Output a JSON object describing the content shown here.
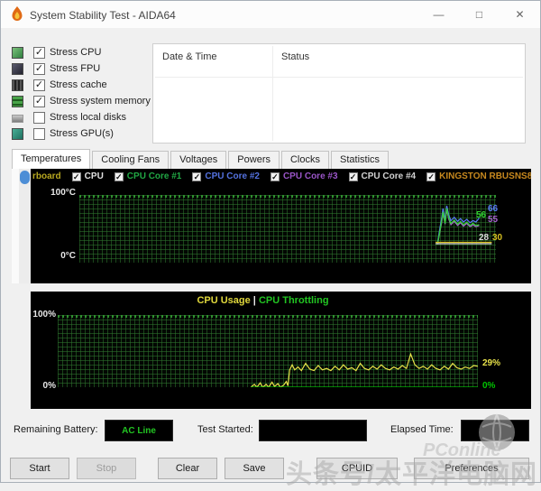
{
  "window": {
    "title": "System Stability Test - AIDA64",
    "controls": {
      "minimize": "—",
      "maximize": "□",
      "close": "✕"
    }
  },
  "stress_options": [
    {
      "label": "Stress CPU",
      "mark": "✓"
    },
    {
      "label": "Stress FPU",
      "mark": "✓"
    },
    {
      "label": "Stress cache",
      "mark": "✓"
    },
    {
      "label": "Stress system memory",
      "mark": "✓"
    },
    {
      "label": "Stress local disks",
      "mark": ""
    },
    {
      "label": "Stress GPU(s)",
      "mark": ""
    }
  ],
  "log_table": {
    "columns": [
      "Date & Time",
      "Status"
    ],
    "rows": []
  },
  "tabs": [
    {
      "label": "Temperatures"
    },
    {
      "label": "Cooling Fans"
    },
    {
      "label": "Voltages"
    },
    {
      "label": "Powers"
    },
    {
      "label": "Clocks"
    },
    {
      "label": "Statistics"
    }
  ],
  "temp_panel": {
    "legend": [
      {
        "label": "rboard",
        "color": "#b8a820",
        "mark": ""
      },
      {
        "label": "CPU",
        "color": "#e2e2e2",
        "mark": "✓"
      },
      {
        "label": "CPU Core #1",
        "color": "#21a844",
        "mark": "✓"
      },
      {
        "label": "CPU Core #2",
        "color": "#5472e0",
        "mark": "✓"
      },
      {
        "label": "CPU Core #3",
        "color": "#9a55c8",
        "mark": "✓"
      },
      {
        "label": "CPU Core #4",
        "color": "#d2d2d2",
        "mark": "✓"
      },
      {
        "label": "KINGSTON RBUSNS8180",
        "color": "#c8891e",
        "mark": "✓"
      }
    ],
    "y_top": "100°C",
    "y_bottom": "0°C",
    "right_values": [
      {
        "text": "56",
        "color": "#2fd32f"
      },
      {
        "text": "66",
        "color": "#5b7cfa"
      },
      {
        "text": "55",
        "color": "#a85fd0"
      },
      {
        "text": "28",
        "color": "#d8d8d8"
      },
      {
        "text": "30",
        "color": "#d8c020"
      }
    ]
  },
  "usage_panel": {
    "title_left": "CPU Usage",
    "separator": "|",
    "title_right": "CPU Throttling",
    "title_left_color": "#e0d83c",
    "separator_color": "#e8e8e8",
    "title_right_color": "#22c522",
    "y_top": "100%",
    "y_bottom": "0%",
    "right_values": [
      {
        "text": "29%",
        "color": "#e8e24a"
      },
      {
        "text": "0%",
        "color": "#00c400"
      }
    ]
  },
  "footer": {
    "battery_label": "Remaining Battery:",
    "battery_value": "AC Line",
    "battery_value_color": "#22c522",
    "test_started_label": "Test Started:",
    "elapsed_label": "Elapsed Time:"
  },
  "buttons": [
    {
      "label": "Start",
      "enabled": true
    },
    {
      "label": "Stop",
      "enabled": false
    },
    {
      "label": "Clear",
      "enabled": true
    },
    {
      "label": "Save",
      "enabled": true
    },
    {
      "label": "CPUID",
      "enabled": true
    },
    {
      "label": "Preferences",
      "enabled": true
    }
  ],
  "watermark": {
    "brand": "PConline",
    "text": "头条号/太平洋电脑网"
  },
  "chart_data": [
    {
      "type": "line",
      "title": "Temperatures",
      "ylabel": "°C",
      "ylim": [
        0,
        100
      ],
      "grid": true,
      "legend_position": "top",
      "legend": [
        "rboard",
        "CPU",
        "CPU Core #1",
        "CPU Core #2",
        "CPU Core #3",
        "CPU Core #4",
        "KINGSTON RBUSNS8180"
      ],
      "series": [
        {
          "name": "CPU Core #2",
          "color": "#5b7cfa",
          "end_value": 66,
          "points": [
            [
              86,
              30
            ],
            [
              86.5,
              49
            ],
            [
              87,
              67
            ],
            [
              87.3,
              80
            ],
            [
              87.8,
              63
            ],
            [
              88.2,
              84
            ],
            [
              88.7,
              70
            ],
            [
              89.2,
              62
            ],
            [
              90,
              67
            ],
            [
              90.8,
              61
            ],
            [
              91.5,
              65
            ],
            [
              92.2,
              60
            ],
            [
              93,
              64
            ],
            [
              93.8,
              59
            ],
            [
              94.5,
              62
            ],
            [
              95.2,
              60
            ],
            [
              96,
              66
            ]
          ]
        },
        {
          "name": "CPU Core #3",
          "color": "#a85fd0",
          "end_value": 55,
          "points": [
            [
              86,
              27
            ],
            [
              86.5,
              44
            ],
            [
              87,
              60
            ],
            [
              87.3,
              73
            ],
            [
              87.8,
              57
            ],
            [
              88.2,
              78
            ],
            [
              88.7,
              64
            ],
            [
              89.2,
              56
            ],
            [
              90,
              61
            ],
            [
              90.8,
              55
            ],
            [
              91.5,
              59
            ],
            [
              92.2,
              54
            ],
            [
              93,
              58
            ],
            [
              93.8,
              53
            ],
            [
              94.5,
              56
            ],
            [
              95.2,
              53
            ],
            [
              96,
              55
            ]
          ]
        },
        {
          "name": "CPU Core #1",
          "color": "#2fd32f",
          "end_value": 56,
          "points": [
            [
              86,
              28
            ],
            [
              86.5,
              45
            ],
            [
              87,
              62
            ],
            [
              87.3,
              75
            ],
            [
              87.8,
              58
            ],
            [
              88.2,
              80
            ],
            [
              88.7,
              66
            ],
            [
              89.2,
              58
            ],
            [
              90,
              63
            ],
            [
              90.8,
              57
            ],
            [
              91.5,
              61
            ],
            [
              92.2,
              56
            ],
            [
              93,
              60
            ],
            [
              93.8,
              55
            ],
            [
              94.5,
              58
            ],
            [
              95.2,
              55
            ],
            [
              96,
              56
            ]
          ]
        },
        {
          "name": "CPU",
          "color": "#e0e0e0",
          "end_value": 28,
          "points": [
            [
              85.5,
              28
            ],
            [
              99,
              28
            ]
          ]
        },
        {
          "name": "KINGSTON RBUSNS8180",
          "color": "#d8c020",
          "end_value": 30,
          "points": [
            [
              85.5,
              30
            ],
            [
              99,
              30
            ]
          ]
        }
      ]
    },
    {
      "type": "line",
      "title": "CPU Usage | CPU Throttling",
      "ylabel": "%",
      "ylim": [
        0,
        100
      ],
      "grid": true,
      "series": [
        {
          "name": "CPU Usage",
          "color": "#e8e24a",
          "end_value": 29,
          "points": [
            [
              46,
              0
            ],
            [
              46.8,
              4
            ],
            [
              47.4,
              0
            ],
            [
              48.2,
              6
            ],
            [
              48.8,
              0
            ],
            [
              49.6,
              4
            ],
            [
              50.2,
              0
            ],
            [
              51,
              7
            ],
            [
              51.6,
              1
            ],
            [
              52.4,
              5
            ],
            [
              53,
              0
            ],
            [
              53.8,
              3
            ],
            [
              54.4,
              8
            ],
            [
              54.8,
              2
            ],
            [
              55.2,
              24
            ],
            [
              55.8,
              31
            ],
            [
              56.4,
              24
            ],
            [
              57.2,
              28
            ],
            [
              58,
              23
            ],
            [
              59,
              33
            ],
            [
              60,
              25
            ],
            [
              61,
              23
            ],
            [
              62,
              30
            ],
            [
              63,
              24
            ],
            [
              64,
              26
            ],
            [
              65,
              23
            ],
            [
              66,
              29
            ],
            [
              67,
              24
            ],
            [
              68,
              31
            ],
            [
              69,
              25
            ],
            [
              70,
              27
            ],
            [
              71,
              23
            ],
            [
              72,
              33
            ],
            [
              73,
              26
            ],
            [
              74,
              24
            ],
            [
              75,
              29
            ],
            [
              76,
              25
            ],
            [
              77,
              31
            ],
            [
              78,
              26
            ],
            [
              79,
              24
            ],
            [
              80,
              28
            ],
            [
              81,
              25
            ],
            [
              82,
              30
            ],
            [
              83,
              26
            ],
            [
              84,
              46
            ],
            [
              85,
              31
            ],
            [
              86,
              26
            ],
            [
              87,
              29
            ],
            [
              88,
              25
            ],
            [
              89,
              31
            ],
            [
              90,
              26
            ],
            [
              91,
              24
            ],
            [
              92,
              29
            ],
            [
              93,
              25
            ],
            [
              94,
              33
            ],
            [
              95,
              27
            ],
            [
              96,
              25
            ],
            [
              97,
              28
            ],
            [
              98,
              26
            ],
            [
              99,
              30
            ],
            [
              100,
              29
            ]
          ]
        },
        {
          "name": "CPU Throttling",
          "color": "#00c400",
          "end_value": 0,
          "points": [
            [
              46,
              0
            ],
            [
              100,
              0
            ]
          ]
        }
      ]
    }
  ]
}
